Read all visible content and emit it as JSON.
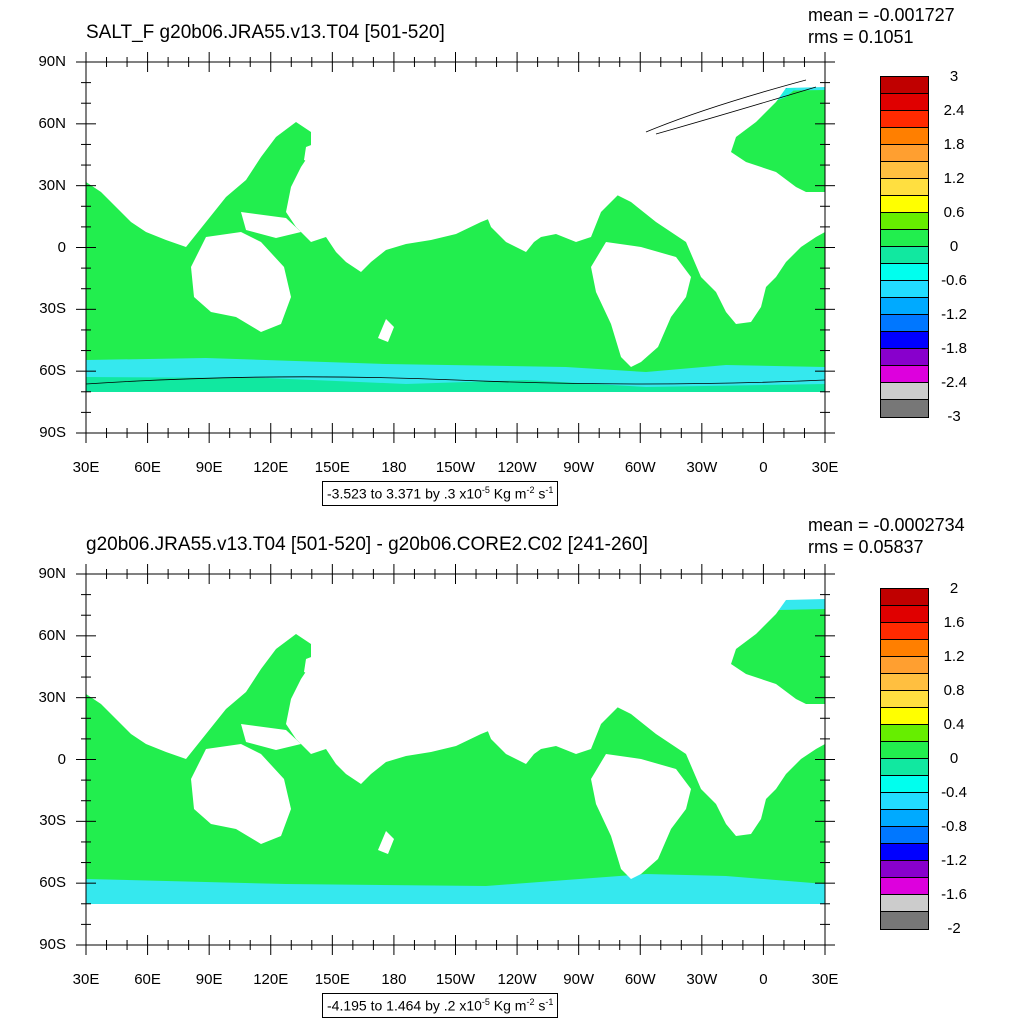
{
  "map_data": {
    "lat_labels": [
      "90N",
      "60N",
      "30N",
      "0",
      "30S",
      "60S",
      "90S"
    ],
    "lon_labels": [
      "30E",
      "60E",
      "90E",
      "120E",
      "150E",
      "180",
      "150W",
      "120W",
      "90W",
      "60W",
      "30W",
      "0",
      "30E"
    ],
    "colors": {
      "ocean_main": "#22ee4e",
      "teal": "#11e8a0",
      "cyan": "#22f0e0",
      "cyan_light": "#35e8ee",
      "land": "#ffffff"
    }
  },
  "top": {
    "title": "SALT_F g20b06.JRA55.v13.T04 [501-520]",
    "mean": "mean = -0.001727",
    "rms": "rms = 0.1051",
    "colorbar": {
      "labels": [
        "3",
        "2.4",
        "1.8",
        "1.2",
        "0.6",
        "0",
        "-0.6",
        "-1.2",
        "-1.8",
        "-2.4",
        "-3"
      ],
      "colors": [
        "#c00000",
        "#e00000",
        "#ff2a00",
        "#ff7f00",
        "#ff9f30",
        "#ffbf40",
        "#ffdf40",
        "#ffff00",
        "#66ee00",
        "#22ee4e",
        "#11e8a0",
        "#00ffee",
        "#22ddff",
        "#00aaff",
        "#0077ff",
        "#0000ff",
        "#8800cc",
        "#dd00dd",
        "#cccccc",
        "#777777"
      ]
    },
    "range_text": "-3.523 to 3.371 by .3 x10",
    "range_exp": "-5",
    "range_unit_a": " Kg m",
    "range_unit_a_exp": "-2",
    "range_unit_b": " s",
    "range_unit_b_exp": "-1"
  },
  "bottom": {
    "title": "g20b06.JRA55.v13.T04 [501-520] - g20b06.CORE2.C02 [241-260]",
    "mean": "mean = -0.0002734",
    "rms": "rms = 0.05837",
    "colorbar": {
      "labels": [
        "2",
        "1.6",
        "1.2",
        "0.8",
        "0.4",
        "0",
        "-0.4",
        "-0.8",
        "-1.2",
        "-1.6",
        "-2"
      ],
      "colors": [
        "#c00000",
        "#e00000",
        "#ff2a00",
        "#ff7f00",
        "#ff9f30",
        "#ffbf40",
        "#ffdf40",
        "#ffff00",
        "#66ee00",
        "#22ee4e",
        "#11e8a0",
        "#00ffee",
        "#22ddff",
        "#00aaff",
        "#0077ff",
        "#0000ff",
        "#8800cc",
        "#dd00dd",
        "#cccccc",
        "#777777"
      ]
    },
    "range_text": "-4.195 to 1.464 by .2 x10",
    "range_exp": "-5",
    "range_unit_a": " Kg m",
    "range_unit_a_exp": "-2",
    "range_unit_b": " s",
    "range_unit_b_exp": "-1"
  }
}
